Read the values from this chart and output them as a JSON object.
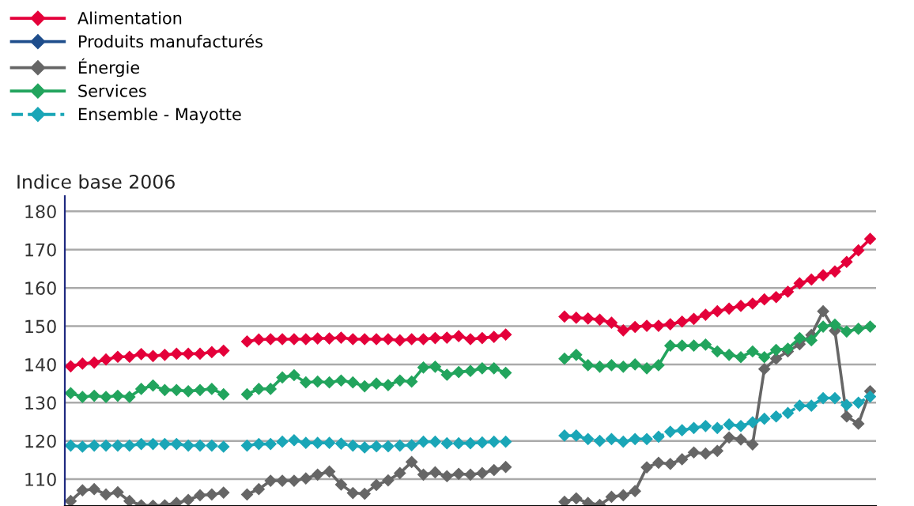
{
  "chart_data": {
    "type": "line",
    "ylabel": "Indice base 2006",
    "categories": [
      null,
      null,
      null,
      null,
      null,
      null,
      null,
      null,
      null,
      null,
      null,
      null,
      null,
      null,
      null,
      null,
      null,
      null,
      null,
      null,
      null,
      null,
      null,
      null,
      null,
      null,
      null,
      null,
      null,
      null,
      null,
      null,
      null,
      null,
      null,
      null,
      null,
      null,
      null,
      null,
      null,
      null,
      null,
      null,
      null,
      null,
      null,
      null,
      null,
      null,
      null,
      null,
      null,
      null,
      null,
      null,
      null,
      null,
      null,
      null,
      null,
      null,
      null,
      null,
      null,
      null,
      null,
      null,
      null
    ],
    "ylim": [
      103,
      184
    ],
    "yticks": [
      110,
      120,
      130,
      140,
      150,
      160,
      170,
      180
    ],
    "grid": "y",
    "legend": "top left",
    "marker": "diamond",
    "tick_labels": "y",
    "series": [
      {
        "name": "Alimentation",
        "color": "#e4003a",
        "values": [
          139.5,
          140.2,
          140.5,
          141.3,
          142,
          142,
          142.7,
          142.2,
          142.5,
          142.8,
          142.8,
          142.8,
          143.2,
          143.6,
          null,
          146,
          146.5,
          146.6,
          146.6,
          146.6,
          146.6,
          146.8,
          146.8,
          147,
          146.6,
          146.6,
          146.6,
          146.6,
          146.3,
          146.6,
          146.6,
          146.9,
          147,
          147.4,
          146.6,
          146.9,
          147.2,
          147.8,
          null,
          null,
          null,
          null,
          152.5,
          152.2,
          152,
          151.7,
          150.9,
          148.9,
          149.8,
          150.1,
          150.1,
          150.5,
          151.2,
          151.9,
          153,
          153.9,
          154.6,
          155.3,
          155.9,
          157,
          157.6,
          159,
          161.2,
          162.2,
          163.3,
          164.3,
          166.8,
          169.8,
          172.8
        ]
      },
      {
        "name": "Produits manufacturés",
        "color": "#1f4e8c",
        "values": [
          null,
          null,
          null,
          null,
          null,
          null,
          null,
          null,
          null,
          null,
          null,
          null,
          null,
          null,
          null,
          null,
          null,
          null,
          null,
          null,
          null,
          null,
          null,
          null,
          null,
          null,
          null,
          null,
          null,
          null,
          null,
          null,
          null,
          null,
          null,
          null,
          null,
          null,
          null,
          null,
          null,
          null,
          null,
          null,
          null,
          null,
          null,
          null,
          null,
          null,
          null,
          null,
          null,
          null,
          null,
          null,
          null,
          null,
          null,
          null,
          null,
          null,
          null,
          null,
          null,
          null,
          null,
          null,
          null
        ]
      },
      {
        "name": "Énergie",
        "color": "#666666",
        "values": [
          104.3,
          107.1,
          107.4,
          106,
          106.6,
          104.3,
          103.2,
          103.1,
          103.2,
          103.8,
          104.6,
          105.8,
          106,
          106.5,
          null,
          106,
          107.4,
          109.6,
          109.6,
          109.6,
          110.2,
          111.2,
          112,
          108.6,
          106.4,
          106.2,
          108.5,
          109.7,
          111.6,
          114.5,
          111.2,
          111.8,
          110.8,
          111.4,
          111.2,
          111.6,
          112.4,
          113.2,
          null,
          null,
          null,
          null,
          104.1,
          105,
          103.8,
          103.3,
          105.4,
          105.8,
          106.9,
          113.1,
          114.3,
          114,
          115.2,
          117,
          116.7,
          117.4,
          120.9,
          120.4,
          119.1,
          138.8,
          141.5,
          143.4,
          145.3,
          147.7,
          153.9,
          148.8,
          126.4,
          124.5,
          133
        ]
      },
      {
        "name": "Services",
        "color": "#22a45d",
        "values": [
          132.5,
          131.5,
          131.8,
          131.5,
          131.8,
          131.5,
          133.6,
          134.5,
          133.3,
          133.3,
          133,
          133.3,
          133.6,
          132.2,
          null,
          132.2,
          133.6,
          133.6,
          136.6,
          137.2,
          135.3,
          135.5,
          135.3,
          135.8,
          135.3,
          134.3,
          135,
          134.6,
          135.8,
          135.5,
          139.2,
          139.4,
          137.3,
          138,
          138.3,
          139,
          139,
          137.8,
          null,
          null,
          null,
          null,
          141.5,
          142.5,
          139.8,
          139.4,
          139.8,
          139.4,
          140,
          139,
          139.8,
          144.9,
          144.9,
          144.9,
          145.2,
          143.4,
          142.5,
          141.9,
          143.4,
          141.9,
          143.8,
          144.1,
          146.9,
          146.3,
          149.9,
          150.4,
          148.6,
          149.3,
          149.9
        ]
      },
      {
        "name": "Ensemble - Mayotte",
        "color": "#1aa6b7",
        "line_style": "dashed",
        "values": [
          118.8,
          118.5,
          118.8,
          118.8,
          118.8,
          118.8,
          119.2,
          119.2,
          119.2,
          119.2,
          118.8,
          118.8,
          118.8,
          118.5,
          null,
          118.8,
          119.2,
          119.2,
          119.8,
          120.2,
          119.5,
          119.5,
          119.5,
          119.3,
          118.8,
          118.3,
          118.6,
          118.6,
          118.8,
          118.9,
          119.8,
          119.8,
          119.4,
          119.4,
          119.4,
          119.6,
          119.8,
          119.8,
          null,
          null,
          null,
          null,
          121.4,
          121.4,
          120.5,
          120,
          120.5,
          119.8,
          120.5,
          120.5,
          121.1,
          122.4,
          122.8,
          123.4,
          123.9,
          123.4,
          124.3,
          123.9,
          124.9,
          125.8,
          126.4,
          127.3,
          129.2,
          129.2,
          131.2,
          131.2,
          129.4,
          130,
          131.6
        ]
      }
    ]
  }
}
